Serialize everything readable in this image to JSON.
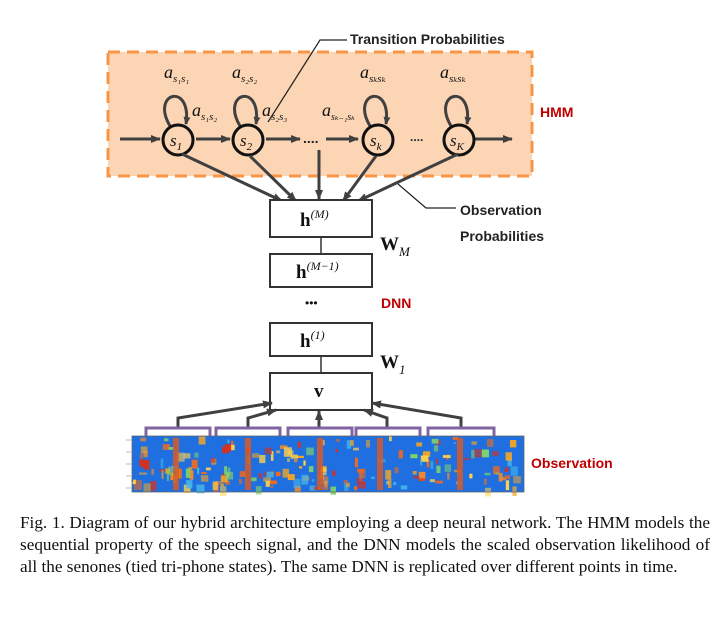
{
  "labels": {
    "transition_probabilities": "Transition Probabilities",
    "hmm": "HMM",
    "observation_probabilities_line1": "Observation",
    "observation_probabilities_line2": "Probabilities",
    "dnn": "DNN",
    "observation": "Observation"
  },
  "states": [
    {
      "main": "s",
      "sub": "1"
    },
    {
      "main": "s",
      "sub": "2"
    },
    {
      "main": "s",
      "sub": "k"
    },
    {
      "main": "s",
      "sub": "K"
    }
  ],
  "self_transitions": [
    {
      "main": "a",
      "sub": "s₁s₁"
    },
    {
      "main": "a",
      "sub": "s₂s₂"
    },
    {
      "main": "a",
      "sub": "sₖsₖ"
    },
    {
      "main": "a",
      "sub": "sₖsₖ"
    }
  ],
  "forward_transitions": [
    {
      "main": "a",
      "sub": "s₁s₂"
    },
    {
      "main": "a",
      "sub": "s₂s₃"
    },
    {
      "main": "a",
      "sub": "sₖ₋₁sₖ"
    }
  ],
  "ellipsis": "....",
  "ellipsis_short": "....",
  "dnn_layers": [
    {
      "main": "h",
      "sup": "(M)"
    },
    {
      "main": "h",
      "sup": "(M−1)"
    },
    {
      "main": "h",
      "sup": "(1)"
    },
    {
      "main": "v",
      "sup": ""
    }
  ],
  "dnn_dots": "•••",
  "weights": [
    {
      "main": "W",
      "sub": "M"
    },
    {
      "main": "W",
      "sub": "1"
    }
  ],
  "colors": {
    "hmm_fill": "#fcd5b5",
    "hmm_border": "#f79646",
    "red_label": "#c00000",
    "arrow": "#404040",
    "bracket": "#8064a2"
  },
  "caption": "Fig. 1.   Diagram of our hybrid architecture employing a deep neural network. The HMM models the sequential property of the speech signal, and the DNN models the scaled observation likelihood of all the senones (tied tri-phone states). The same DNN is replicated over different points in time."
}
